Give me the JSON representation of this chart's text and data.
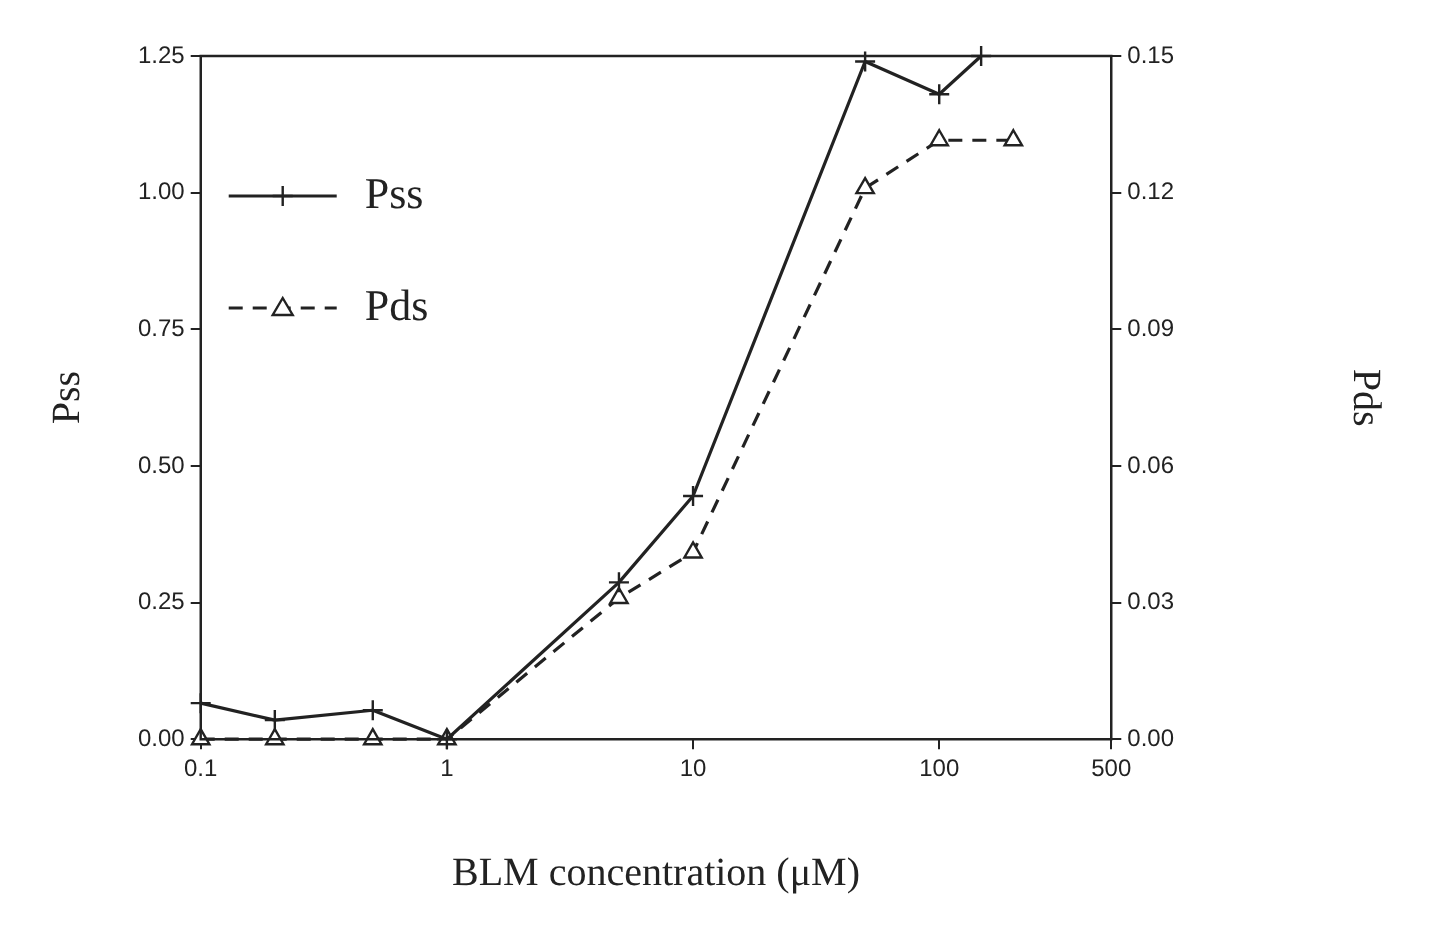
{
  "chart_data": {
    "type": "line",
    "xlabel": "BLM concentration (μM)",
    "ylabel": "Pss",
    "y2label": "Pds",
    "log": "x",
    "xlim": [
      0.1,
      500
    ],
    "xticks": [
      0.1,
      1,
      10,
      100,
      500
    ],
    "ylim": [
      0,
      1.25
    ],
    "yticks": [
      {
        "value": 0,
        "label": "0.00"
      },
      {
        "value": 0.25,
        "label": "0.25"
      },
      {
        "value": 0.5,
        "label": "0.50"
      },
      {
        "value": 0.75,
        "label": "0.75"
      },
      {
        "value": 1,
        "label": "1.00"
      },
      {
        "value": 1.25,
        "label": "1.25"
      }
    ],
    "y2lim": [
      0,
      0.15
    ],
    "y2ticks": [
      {
        "value": 0,
        "label": "0.00"
      },
      {
        "value": 0.03,
        "label": "0.03"
      },
      {
        "value": 0.06,
        "label": "0.06"
      },
      {
        "value": 0.09,
        "label": "0.09"
      },
      {
        "value": 0.12,
        "label": "0.12"
      },
      {
        "value": 0.15,
        "label": "0.15"
      }
    ],
    "grid": false,
    "legend": "top left",
    "series": [
      {
        "name": "Pss",
        "color": "#222222",
        "marker": "cross",
        "line_style": "solid",
        "x": [
          0.1,
          0.2,
          0.5,
          1,
          5,
          10,
          50,
          100,
          148
        ],
        "values": [
          0.066,
          0.035,
          0.053,
          0,
          0.287,
          0.445,
          1.24,
          1.18,
          1.25
        ]
      },
      {
        "name": "Pds",
        "color": "#222222",
        "marker": "triangle",
        "line_style": "dashed",
        "axis": "y2",
        "x": [
          0.1,
          0.2,
          0.5,
          1,
          5,
          10,
          50,
          100,
          200
        ],
        "values": [
          0,
          0,
          0,
          0,
          0.031,
          0.041,
          0.121,
          0.1315,
          0.1315
        ]
      }
    ]
  }
}
